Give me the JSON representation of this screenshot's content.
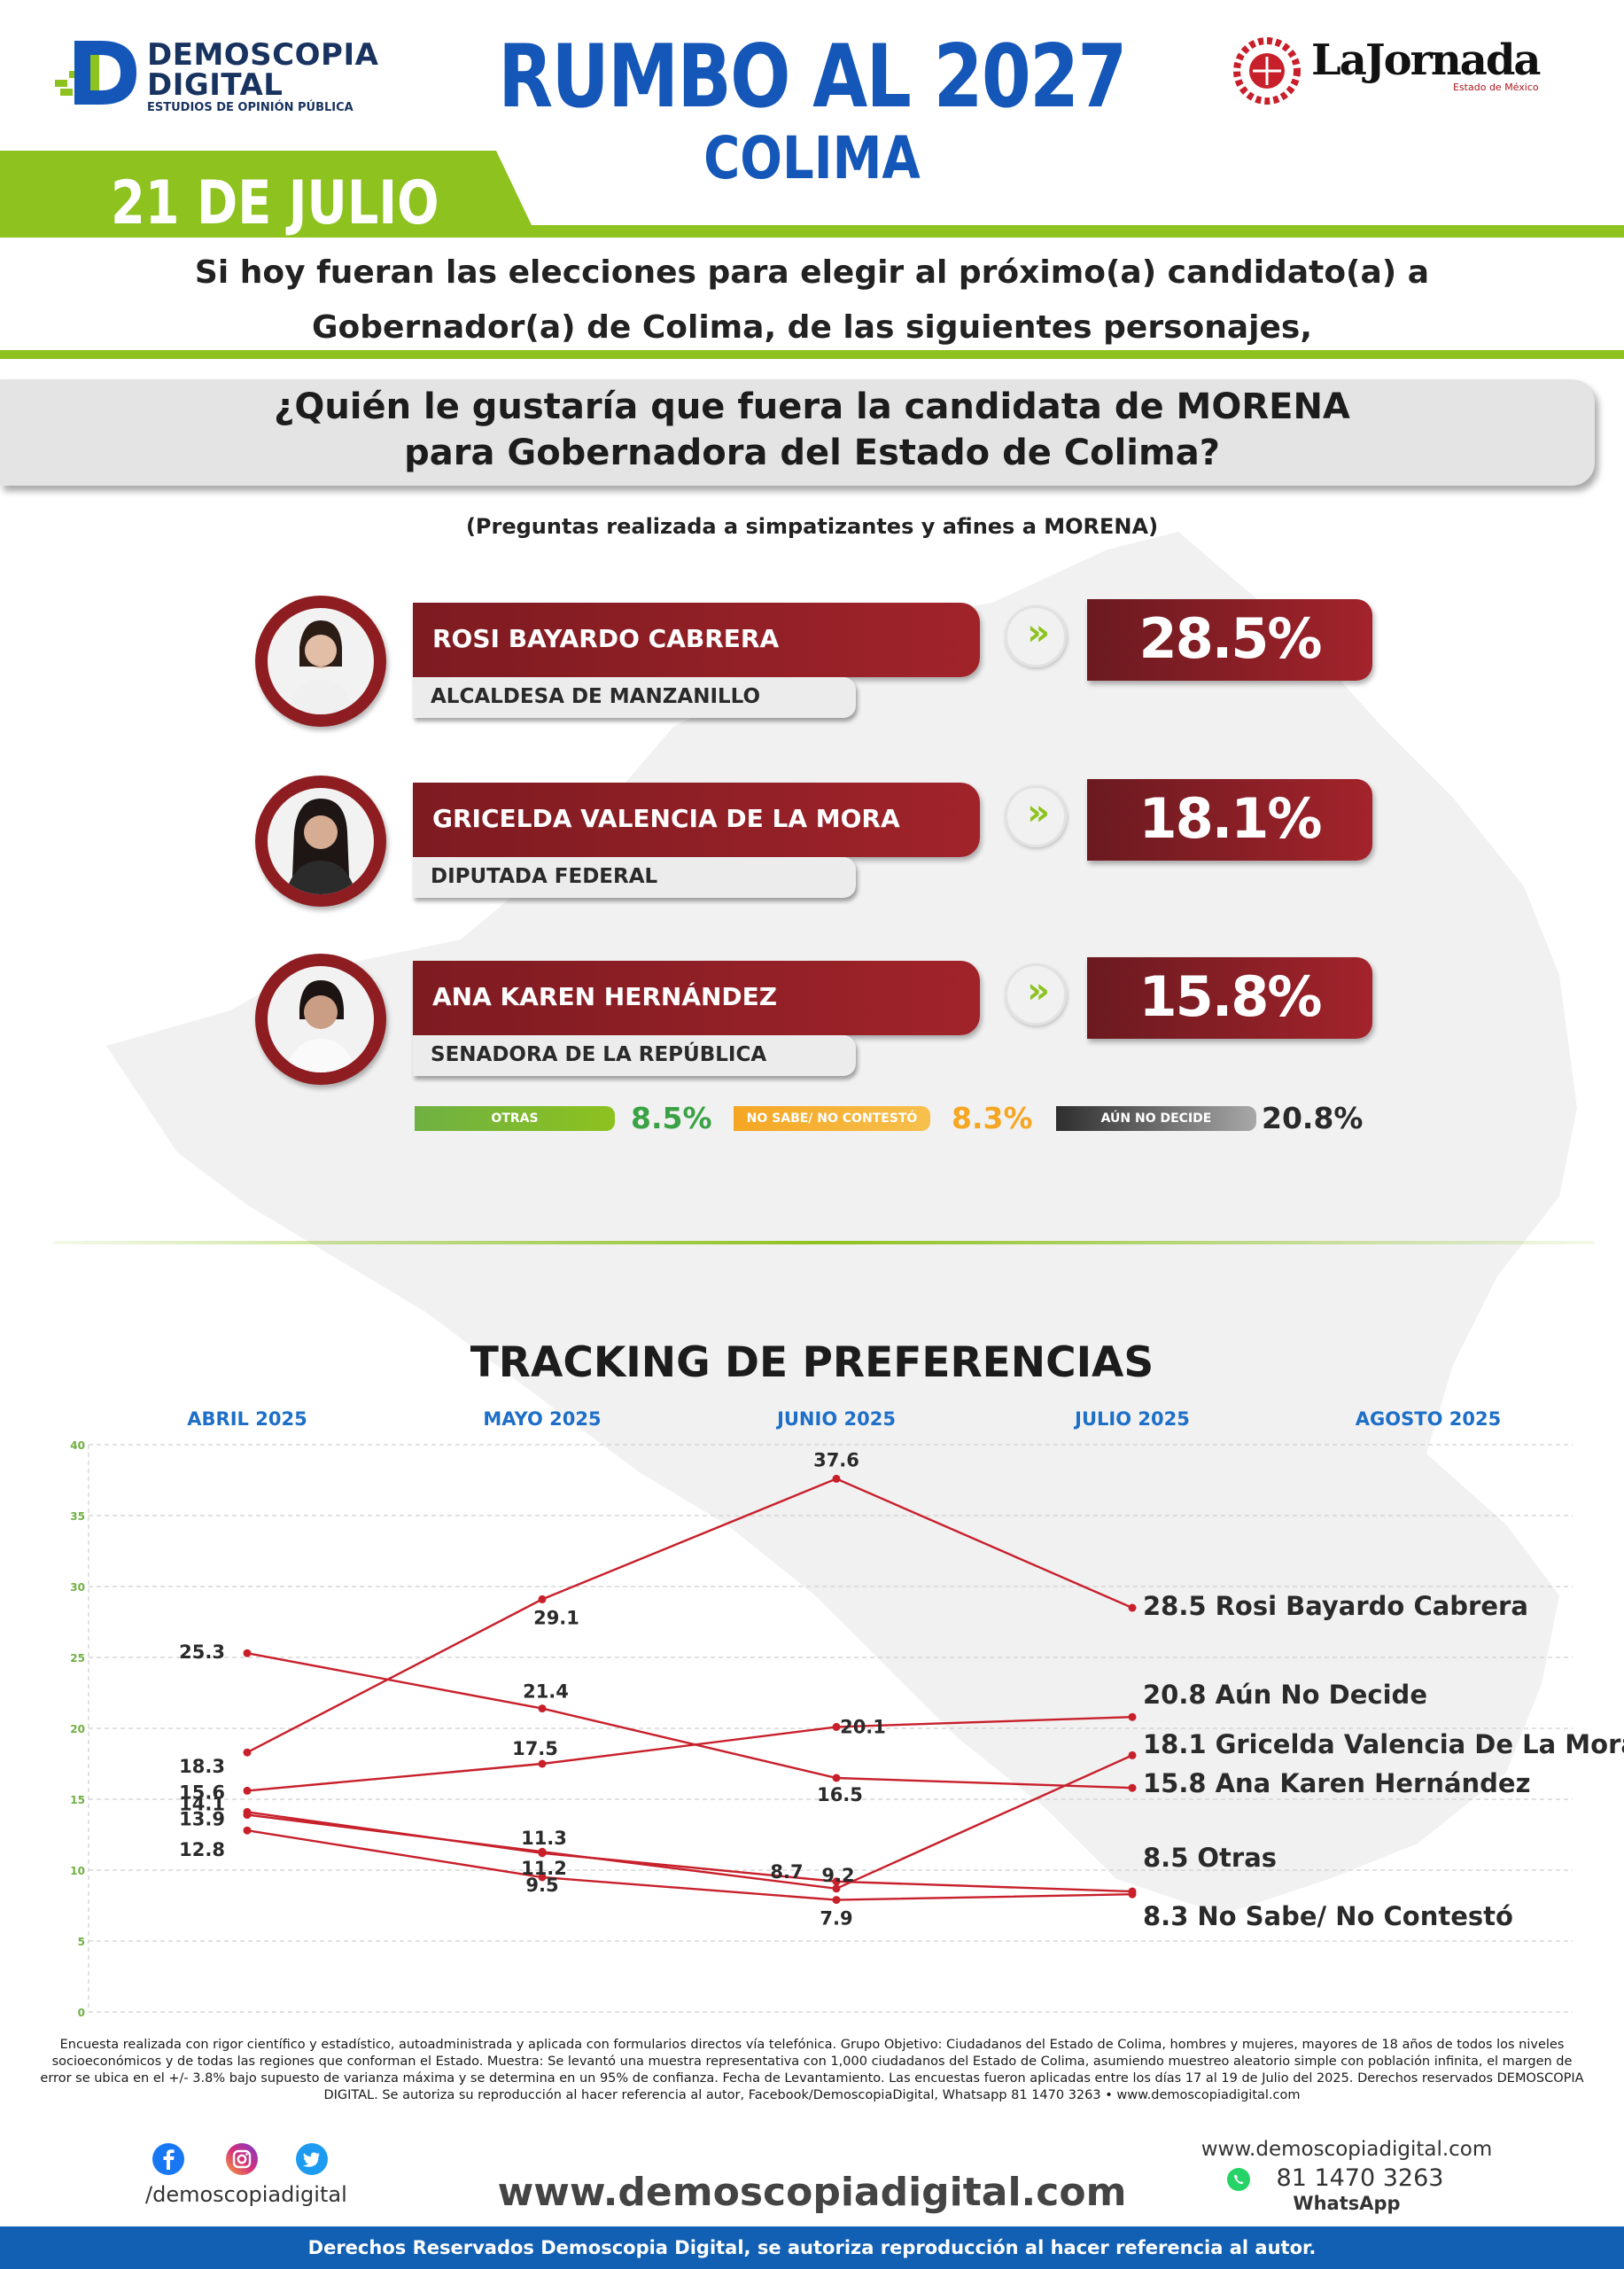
{
  "header": {
    "logo_line1": "DEMOSCOPIA",
    "logo_line2": "DIGITAL",
    "logo_line3": "ESTUDIOS DE OPINIÓN PÚBLICA",
    "title": "RUMBO AL 2027",
    "subtitle": "COLIMA",
    "partner_name": "LaJornada",
    "partner_sub": "Estado de México",
    "date": "21 DE JULIO"
  },
  "intro": {
    "line1": "Si hoy fueran las elecciones para elegir al próximo(a) candidato(a) a",
    "line2": "Gobernador(a) de Colima, de las siguientes personajes,"
  },
  "question": {
    "line1": "¿Quién le gustaría que fuera la candidata de MORENA",
    "line2": "para Gobernadora del Estado de Colima?",
    "note": "(Preguntas realizada a simpatizantes y afines a MORENA)"
  },
  "candidates": [
    {
      "name": "ROSI BAYARDO CABRERA",
      "role": "ALCALDESA DE MANZANILLO",
      "pct": "28.5%"
    },
    {
      "name": "GRICELDA VALENCIA DE LA MORA",
      "role": "DIPUTADA FEDERAL",
      "pct": "18.1%"
    },
    {
      "name": "ANA KAREN HERNÁNDEZ",
      "role": "SENADORA DE LA REPÚBLICA",
      "pct": "15.8%"
    }
  ],
  "others": [
    {
      "label": "OTRAS",
      "value": "8.5%",
      "color": "#6fb043"
    },
    {
      "label": "NO SABE/ NO CONTESTÓ",
      "value": "8.3%",
      "color": "#f5a623"
    },
    {
      "label": "AÚN NO DECIDE",
      "value": "20.8%",
      "color": "#3b3b3b"
    }
  ],
  "colors": {
    "brand_green": "#8dc21f",
    "brand_blue": "#1557b8",
    "series_red": "#c8202b",
    "candidate_maroon": "#8e1d22"
  },
  "tracking": {
    "title": "TRACKING DE PREFERENCIAS"
  },
  "chart_data": {
    "type": "line",
    "title": "TRACKING DE PREFERENCIAS",
    "categories": [
      "ABRIL 2025",
      "MAYO 2025",
      "JUNIO 2025",
      "JULIO 2025",
      "AGOSTO 2025"
    ],
    "ylim": [
      0,
      40
    ],
    "yticks": [
      0,
      5,
      10,
      15,
      20,
      25,
      30,
      35,
      40
    ],
    "grid": true,
    "series": [
      {
        "name": "Rosi Bayardo Cabrera",
        "values": [
          18.3,
          29.1,
          37.6,
          28.5,
          null
        ]
      },
      {
        "name": "Aún No Decide",
        "values": [
          15.6,
          17.5,
          20.1,
          20.8,
          null
        ]
      },
      {
        "name": "Gricelda Valencia De La Mora",
        "values": [
          13.9,
          11.3,
          8.7,
          18.1,
          null
        ]
      },
      {
        "name": "Ana Karen Hernández",
        "values": [
          25.3,
          21.4,
          16.5,
          15.8,
          null
        ]
      },
      {
        "name": "Otras",
        "values": [
          14.1,
          11.2,
          9.2,
          8.5,
          null
        ]
      },
      {
        "name": "No Sabe/ No Contestó",
        "values": [
          12.8,
          9.5,
          7.9,
          8.3,
          null
        ]
      }
    ],
    "end_labels": [
      {
        "value": "28.5",
        "name": "Rosi Bayardo Cabrera"
      },
      {
        "value": "20.8",
        "name": "Aún No Decide"
      },
      {
        "value": "18.1",
        "name": "Gricelda Valencia De La Mora"
      },
      {
        "value": "15.8",
        "name": "Ana Karen Hernández"
      },
      {
        "value": "8.5",
        "name": "Otras"
      },
      {
        "value": "8.3",
        "name": "No Sabe/ No Contestó"
      }
    ]
  },
  "footer": {
    "methodology": "Encuesta realizada con rigor científico y estadístico, autoadministrada y aplicada con formularios directos vía telefónica. Grupo Objetivo: Ciudadanos del Estado de Colima, hombres y mujeres, mayores de 18 años de todos los niveles socioeconómicos y de todas las regiones que conforman el Estado. Muestra: Se levantó una muestra representativa con 1,000 ciudadanos del Estado de Colima, asumiendo muestreo aleatorio simple con población infinita, el margen de error se ubica en el +/- 3.8% bajo supuesto de varianza máxima y se determina en un 95% de confianza. Fecha de Levantamiento. Las encuestas fueron aplicadas entre los días 17 al 19 de Julio del 2025. Derechos reservados DEMOSCOPIA DIGITAL. Se autoriza su reproducción al hacer referencia al autor, Facebook/DemoscopiaDigital, Whatsapp 81 1470 3263 • www.demoscopiadigital.com",
    "handle": "/demoscopiadigital",
    "url_big": "www.demoscopiadigital.com",
    "url_small": "www.demoscopiadigital.com",
    "phone": "81 1470 3263",
    "whatsapp": "WhatsApp",
    "rights": "Derechos Reservados Demoscopia Digital, se autoriza reproducción al hacer referencia al autor."
  }
}
